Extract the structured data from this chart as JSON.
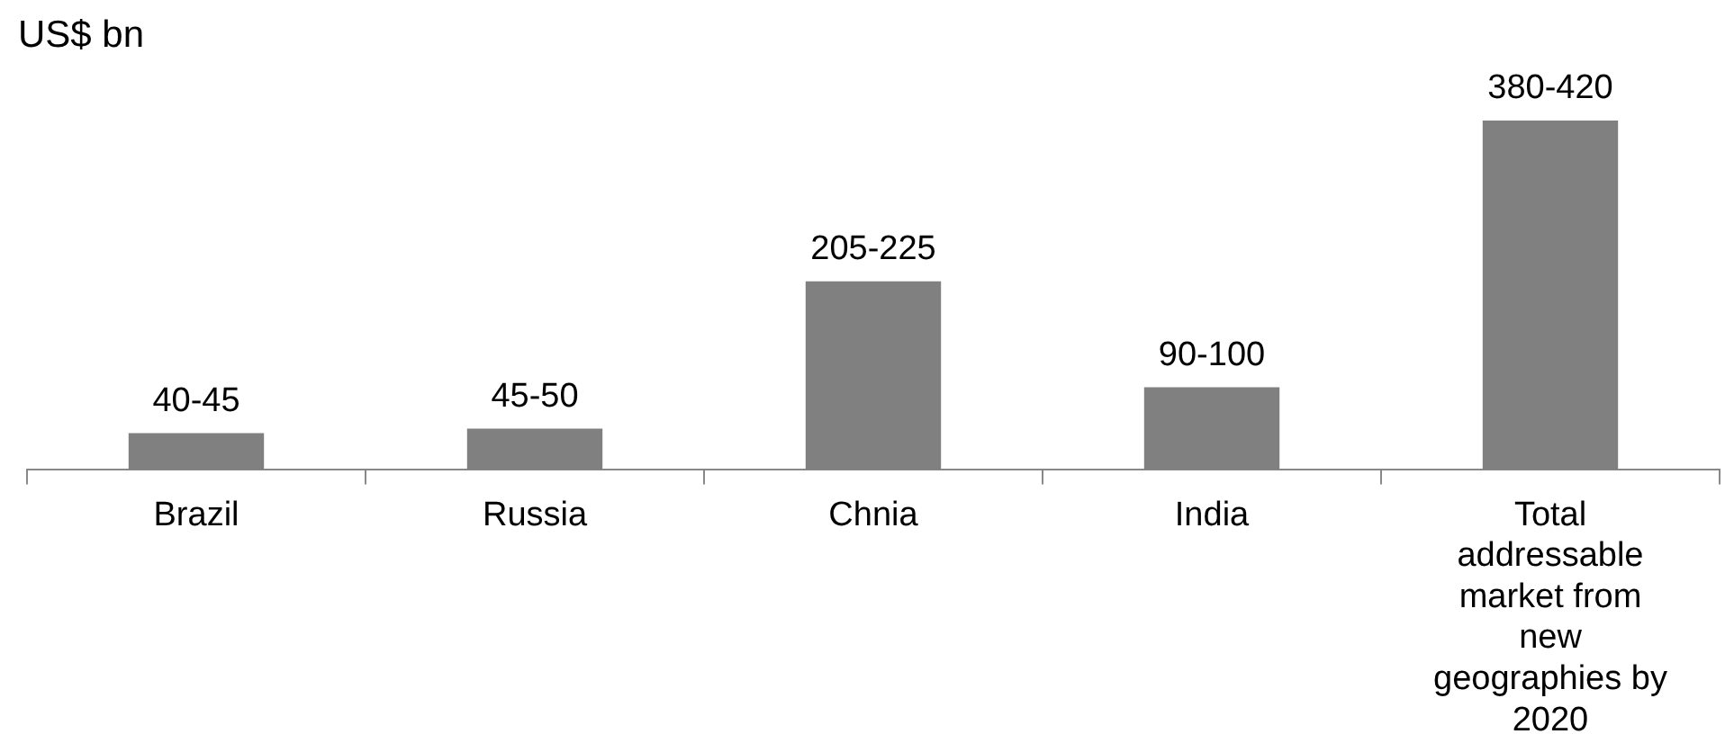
{
  "chart_data": {
    "type": "bar",
    "ylabel": "US$ bn",
    "categories": [
      "Brazil",
      "Russia",
      "Chnia",
      "India",
      "Total addressable market from new geographies by 2020"
    ],
    "values": [
      40,
      45,
      205,
      90,
      380
    ],
    "value_labels": [
      "40-45",
      "45-50",
      "205-225",
      "90-100",
      "380-420"
    ],
    "color": "#808080",
    "grid": false,
    "legend": false
  }
}
